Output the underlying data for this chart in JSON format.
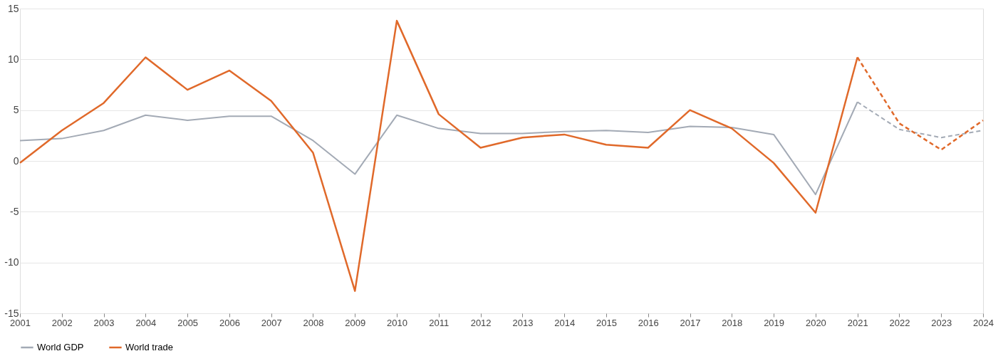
{
  "chart_data": {
    "type": "line",
    "categories": [
      "2001",
      "2002",
      "2003",
      "2004",
      "2005",
      "2006",
      "2007",
      "2008",
      "2009",
      "2010",
      "2011",
      "2012",
      "2013",
      "2014",
      "2015",
      "2016",
      "2017",
      "2018",
      "2019",
      "2020",
      "2021",
      "2022",
      "2023",
      "2024"
    ],
    "series": [
      {
        "name": "World GDP",
        "color": "#a3aab5",
        "line_style": "solid",
        "values": [
          2.0,
          2.2,
          3.0,
          4.5,
          4.0,
          4.4,
          4.4,
          2.0,
          -1.3,
          4.5,
          3.2,
          2.7,
          2.7,
          2.9,
          3.0,
          2.8,
          3.4,
          3.3,
          2.6,
          -3.3,
          5.8,
          null,
          null,
          null
        ]
      },
      {
        "name": "World trade",
        "color": "#e0692a",
        "line_style": "solid",
        "values": [
          -0.2,
          3.0,
          5.7,
          10.2,
          7.0,
          8.9,
          5.9,
          0.8,
          -12.8,
          13.8,
          4.6,
          1.3,
          2.3,
          2.6,
          1.6,
          1.3,
          5.0,
          3.2,
          -0.2,
          -5.1,
          10.2,
          null,
          null,
          null
        ]
      },
      {
        "color": "#a3aab5",
        "line_style": "dashed",
        "values": [
          null,
          null,
          null,
          null,
          null,
          null,
          null,
          null,
          null,
          null,
          null,
          null,
          null,
          null,
          null,
          null,
          null,
          null,
          null,
          null,
          5.8,
          3.1,
          2.3,
          3.0
        ]
      },
      {
        "color": "#e0692a",
        "line_style": "dashed",
        "values": [
          null,
          null,
          null,
          null,
          null,
          null,
          null,
          null,
          null,
          null,
          null,
          null,
          null,
          null,
          null,
          null,
          null,
          null,
          null,
          null,
          10.2,
          3.7,
          1.1,
          4.0
        ]
      }
    ],
    "ylim": [
      -15,
      15
    ],
    "yticks": [
      -15,
      -10,
      -5,
      0,
      5,
      10,
      15
    ],
    "grid": "y",
    "legend": "bottom"
  }
}
